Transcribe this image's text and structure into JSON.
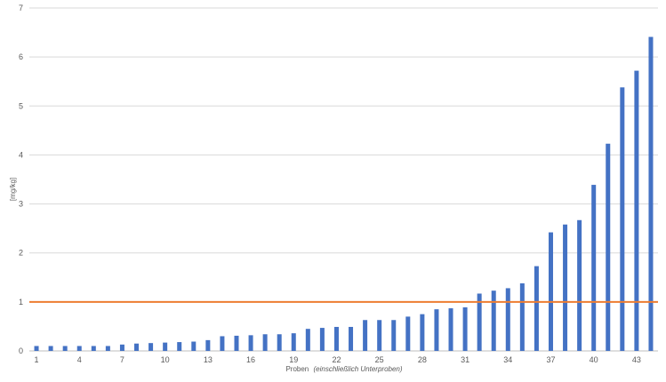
{
  "chart_data": {
    "type": "bar",
    "title": "",
    "xlabel": "Proben",
    "xlabel_italic": "(einschließlich Unterproben)",
    "ylabel": "[mg/kg]",
    "ylim": [
      0,
      7
    ],
    "y_ticks": [
      0,
      1,
      2,
      3,
      4,
      5,
      6,
      7
    ],
    "x_tick_labels": [
      1,
      4,
      7,
      10,
      13,
      16,
      19,
      22,
      25,
      28,
      31,
      34,
      37,
      40,
      43
    ],
    "grid": true,
    "reference_line": {
      "value": 1.0,
      "color": "#ed7d31"
    },
    "bar_color": "#4472c4",
    "categories": [
      1,
      2,
      3,
      4,
      5,
      6,
      7,
      8,
      9,
      10,
      11,
      12,
      13,
      14,
      15,
      16,
      17,
      18,
      19,
      20,
      21,
      22,
      23,
      24,
      25,
      26,
      27,
      28,
      29,
      30,
      31,
      32,
      33,
      34,
      35,
      36,
      37,
      38,
      39,
      40,
      41,
      42,
      43,
      44
    ],
    "values": [
      0.1,
      0.1,
      0.1,
      0.1,
      0.1,
      0.1,
      0.13,
      0.15,
      0.16,
      0.17,
      0.18,
      0.19,
      0.22,
      0.3,
      0.31,
      0.32,
      0.34,
      0.34,
      0.36,
      0.45,
      0.47,
      0.49,
      0.49,
      0.63,
      0.63,
      0.63,
      0.7,
      0.75,
      0.85,
      0.87,
      0.89,
      1.17,
      1.23,
      1.28,
      1.38,
      1.73,
      2.42,
      2.58,
      2.67,
      3.39,
      4.23,
      5.38,
      5.72,
      6.41
    ]
  }
}
